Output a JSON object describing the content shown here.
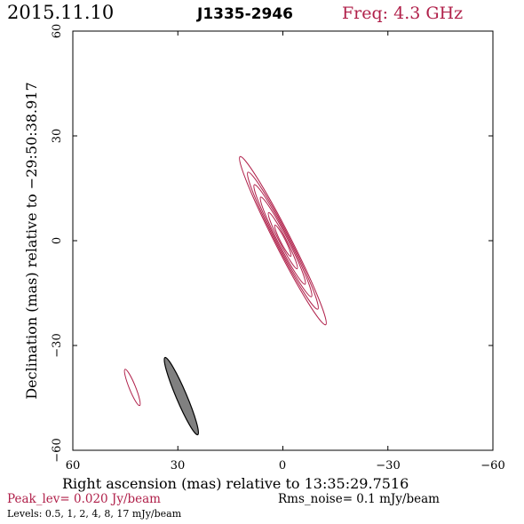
{
  "header": {
    "date": "2015.11.10",
    "source": "J1335-2946",
    "freq": "Freq: 4.3 GHz"
  },
  "footer": {
    "peak": "Peak_lev=  0.020 Jy/beam",
    "rms": "Rms_noise=   0.1 mJy/beam",
    "levels": "Levels: 0.5,    1,    2,    4,    8,   17 mJy/beam"
  },
  "colors": {
    "contour": "#b0204a",
    "beam_fill": "#808080",
    "beam_edge": "#000000",
    "axes": "#000000"
  },
  "chart_data": {
    "type": "contour",
    "xlabel": "Right ascension (mas) relative to 13:35:29.7516",
    "ylabel": "Declination (mas) relative to −29:50:38.917",
    "xlim": [
      60,
      -60
    ],
    "ylim": [
      -60,
      60
    ],
    "xticks": [
      60,
      30,
      0,
      -30,
      -60
    ],
    "yticks": [
      -60,
      -30,
      0,
      30,
      60
    ],
    "xtick_labels": [
      "60",
      "30",
      "0",
      "−30",
      "−60"
    ],
    "ytick_labels": [
      "−60",
      "−30",
      "0",
      "30",
      "60"
    ],
    "levels_mJy_per_beam": [
      0.5,
      1,
      2,
      4,
      8,
      17
    ],
    "peak_Jy_per_beam": 0.02,
    "rms_noise_mJy_per_beam": 0.1,
    "main_component": {
      "center": [
        0,
        0
      ],
      "pa_deg": 27,
      "contours": [
        {
          "semi_major": 27,
          "semi_minor": 2.3
        },
        {
          "semi_major": 22,
          "semi_minor": 2.0
        },
        {
          "semi_major": 18,
          "semi_minor": 1.7
        },
        {
          "semi_major": 14,
          "semi_minor": 1.4
        },
        {
          "semi_major": 9,
          "semi_minor": 1.0
        },
        {
          "semi_major": 5,
          "semi_minor": 0.7
        }
      ]
    },
    "secondary_component": {
      "center": [
        43,
        -42
      ],
      "pa_deg": 22,
      "contours": [
        {
          "semi_major": 5.6,
          "semi_minor": 0.9
        }
      ]
    },
    "beam": {
      "center": [
        29,
        -44.5
      ],
      "pa_deg": 23,
      "semi_major": 12,
      "semi_minor": 1.5
    }
  }
}
